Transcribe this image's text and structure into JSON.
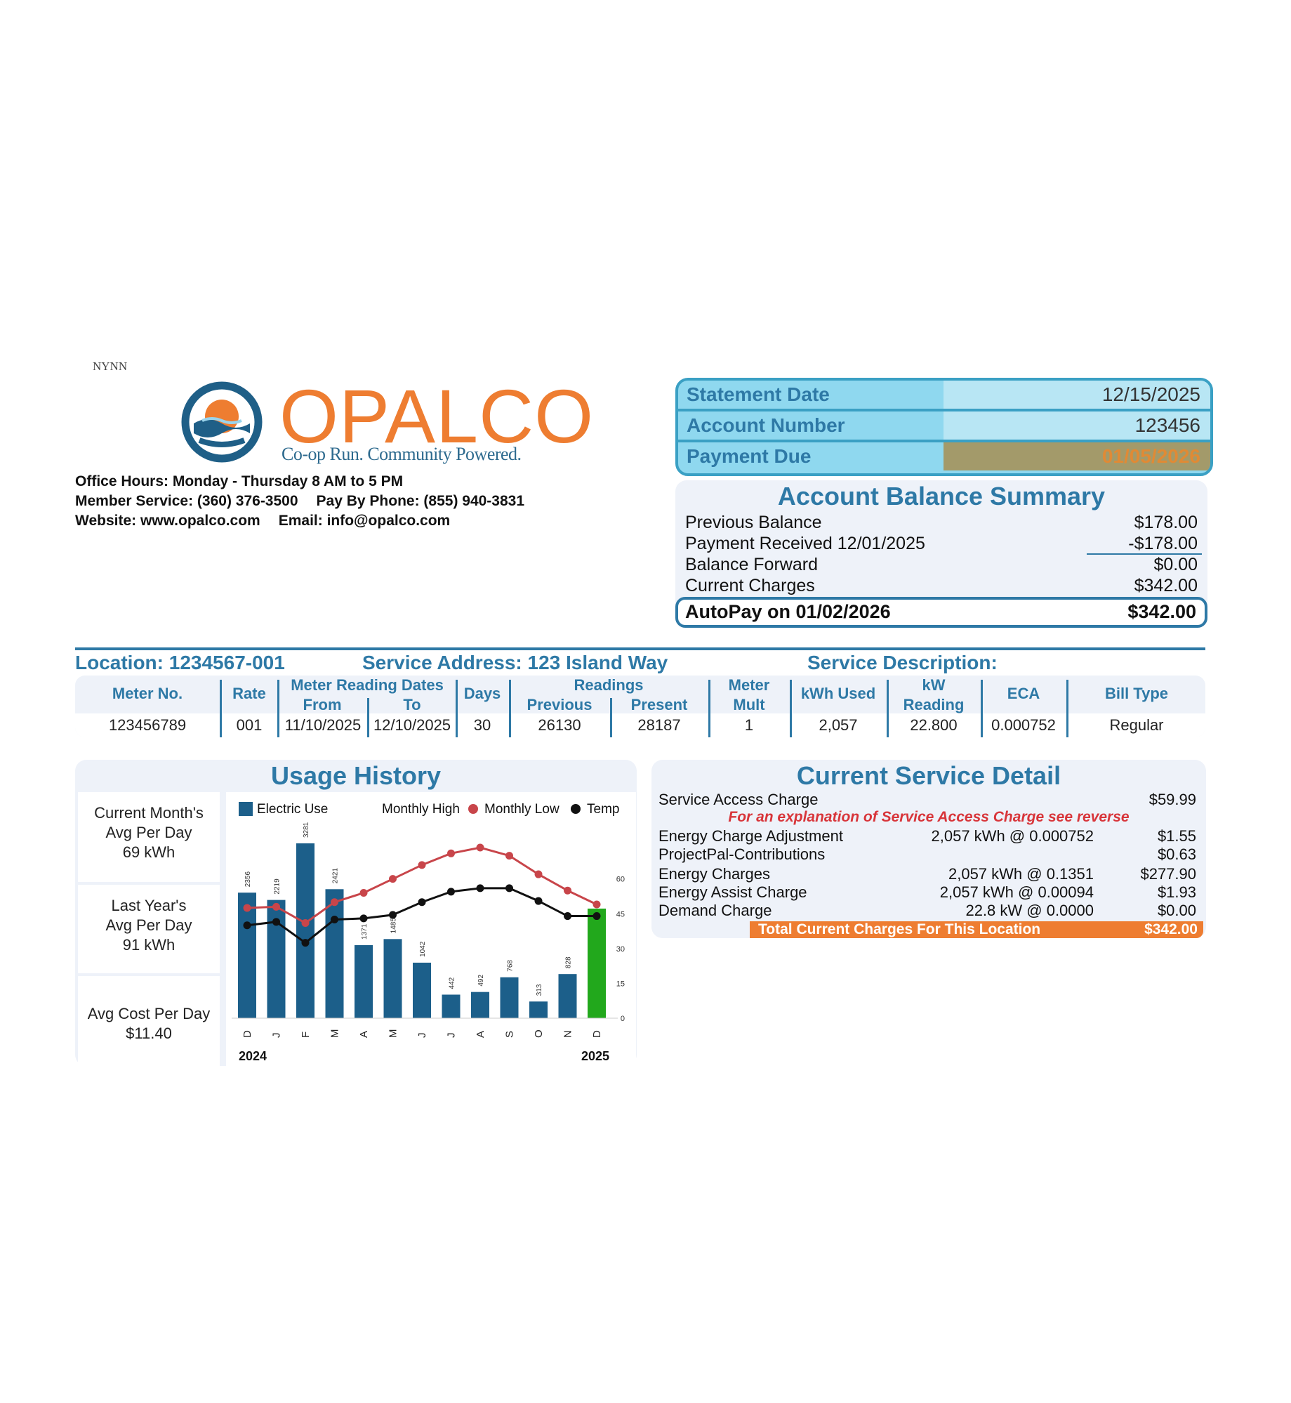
{
  "doc_code": "NYNN",
  "brand": {
    "name": "OPALCO",
    "tagline": "Co-op Run. Community Powered."
  },
  "contact": {
    "office_hours": "Office Hours: Monday - Thursday 8 AM to 5 PM",
    "member_service": "Member Service: (360) 376-3500",
    "pay_by_phone": "Pay By Phone: (855) 940-3831",
    "website": "Website: www.opalco.com",
    "email": "Email: info@opalco.com"
  },
  "statement": {
    "date_label": "Statement Date",
    "date_value": "12/15/2025",
    "account_label": "Account Number",
    "account_value": "123456",
    "due_label": "Payment Due",
    "due_value": "01/05/2026"
  },
  "balance_summary": {
    "title": "Account Balance Summary",
    "rows": [
      {
        "label": "Previous Balance",
        "value": "$178.00"
      },
      {
        "label": "Payment Received 12/01/2025",
        "value": "-$178.00"
      },
      {
        "label": "Balance Forward",
        "value": "$0.00"
      },
      {
        "label": "Current Charges",
        "value": "$342.00"
      }
    ],
    "autopay_label": "AutoPay on 01/02/2026",
    "autopay_value": "$342.00"
  },
  "location": {
    "location": "Location: 1234567-001",
    "service_address": "Service Address: 123 Island Way",
    "service_description": "Service Description:"
  },
  "meter": {
    "headers": {
      "meter_no": "Meter No.",
      "rate": "Rate",
      "reading_dates": "Meter Reading Dates",
      "from": "From",
      "to": "To",
      "days": "Days",
      "readings": "Readings",
      "previous": "Previous",
      "present": "Present",
      "mult_1": "Meter",
      "mult_2": "Mult",
      "kwh_used": "kWh Used",
      "kw_1": "kW",
      "kw_2": "Reading",
      "eca": "ECA",
      "bill_type": "Bill Type"
    },
    "values": {
      "meter_no": "123456789",
      "rate": "001",
      "from": "11/10/2025",
      "to": "12/10/2025",
      "days": "30",
      "previous": "26130",
      "present": "28187",
      "mult": "1",
      "kwh_used": "2,057",
      "kw_reading": "22.800",
      "eca": "0.000752",
      "bill_type": "Regular"
    }
  },
  "usage_history": {
    "title": "Usage History",
    "current_month": [
      "Current Month's",
      "Avg Per Day",
      "69 kWh"
    ],
    "last_year": [
      "Last Year's",
      "Avg Per Day",
      "91 kWh"
    ],
    "avg_cost": [
      "Avg Cost Per Day",
      "$11.40"
    ]
  },
  "chart_data": {
    "type": "bar",
    "legend": {
      "electric": "Electric Use",
      "high": "Monthly High",
      "low": "Monthly Low",
      "temp": "Temp"
    },
    "categories": [
      "D",
      "J",
      "F",
      "M",
      "A",
      "M",
      "J",
      "J",
      "A",
      "S",
      "O",
      "N",
      "D"
    ],
    "year_labels": {
      "start": "2024",
      "end": "2025"
    },
    "series": [
      {
        "name": "Electric Use",
        "values": [
          2356,
          2219,
          3281,
          2421,
          1371,
          1485,
          1042,
          442,
          492,
          768,
          313,
          828,
          2057
        ]
      },
      {
        "name": "Monthly High",
        "values": [
          47.5,
          48,
          41,
          50,
          54,
          60,
          66,
          71,
          73.5,
          70,
          62,
          55,
          49
        ]
      },
      {
        "name": "Monthly Low",
        "values": [
          40,
          41.5,
          32.5,
          42.5,
          43,
          44.5,
          50,
          54.5,
          56,
          56,
          50.5,
          44,
          44
        ]
      }
    ],
    "bar_labels": [
      "2356",
      "2219",
      "3281",
      "2421",
      "1371",
      "1485",
      "1042",
      "442",
      "492",
      "768",
      "313",
      "828",
      ""
    ],
    "y_right_ticks": [
      "0",
      "15",
      "30",
      "45",
      "60"
    ],
    "kwh_max": 3400,
    "temp_max": 72,
    "colors": {
      "bar": "#1c5f8a",
      "current_bar": "#22a81c",
      "high": "#c8454a",
      "low": "#111111"
    }
  },
  "service_detail": {
    "title": "Current Service Detail",
    "rows": [
      {
        "label": "Service Access Charge",
        "detail": "",
        "amount": "$59.99"
      },
      {
        "label": "Energy Charge Adjustment",
        "detail": "2,057 kWh  @ 0.000752",
        "amount": "$1.55"
      },
      {
        "label": "ProjectPal-Contributions",
        "detail": "",
        "amount": "$0.63"
      },
      {
        "label": "Energy Charges",
        "detail": "2,057 kWh  @ 0.1351",
        "amount": "$277.90"
      },
      {
        "label": "Energy Assist Charge",
        "detail": "2,057 kWh  @ 0.00094",
        "amount": "$1.93"
      },
      {
        "label": "Demand Charge",
        "detail": "22.8 kW  @ 0.0000",
        "amount": "$0.00"
      }
    ],
    "note": "For an explanation of Service Access Charge see reverse",
    "total_label": "Total Current Charges For This Location",
    "total_value": "$342.00"
  }
}
